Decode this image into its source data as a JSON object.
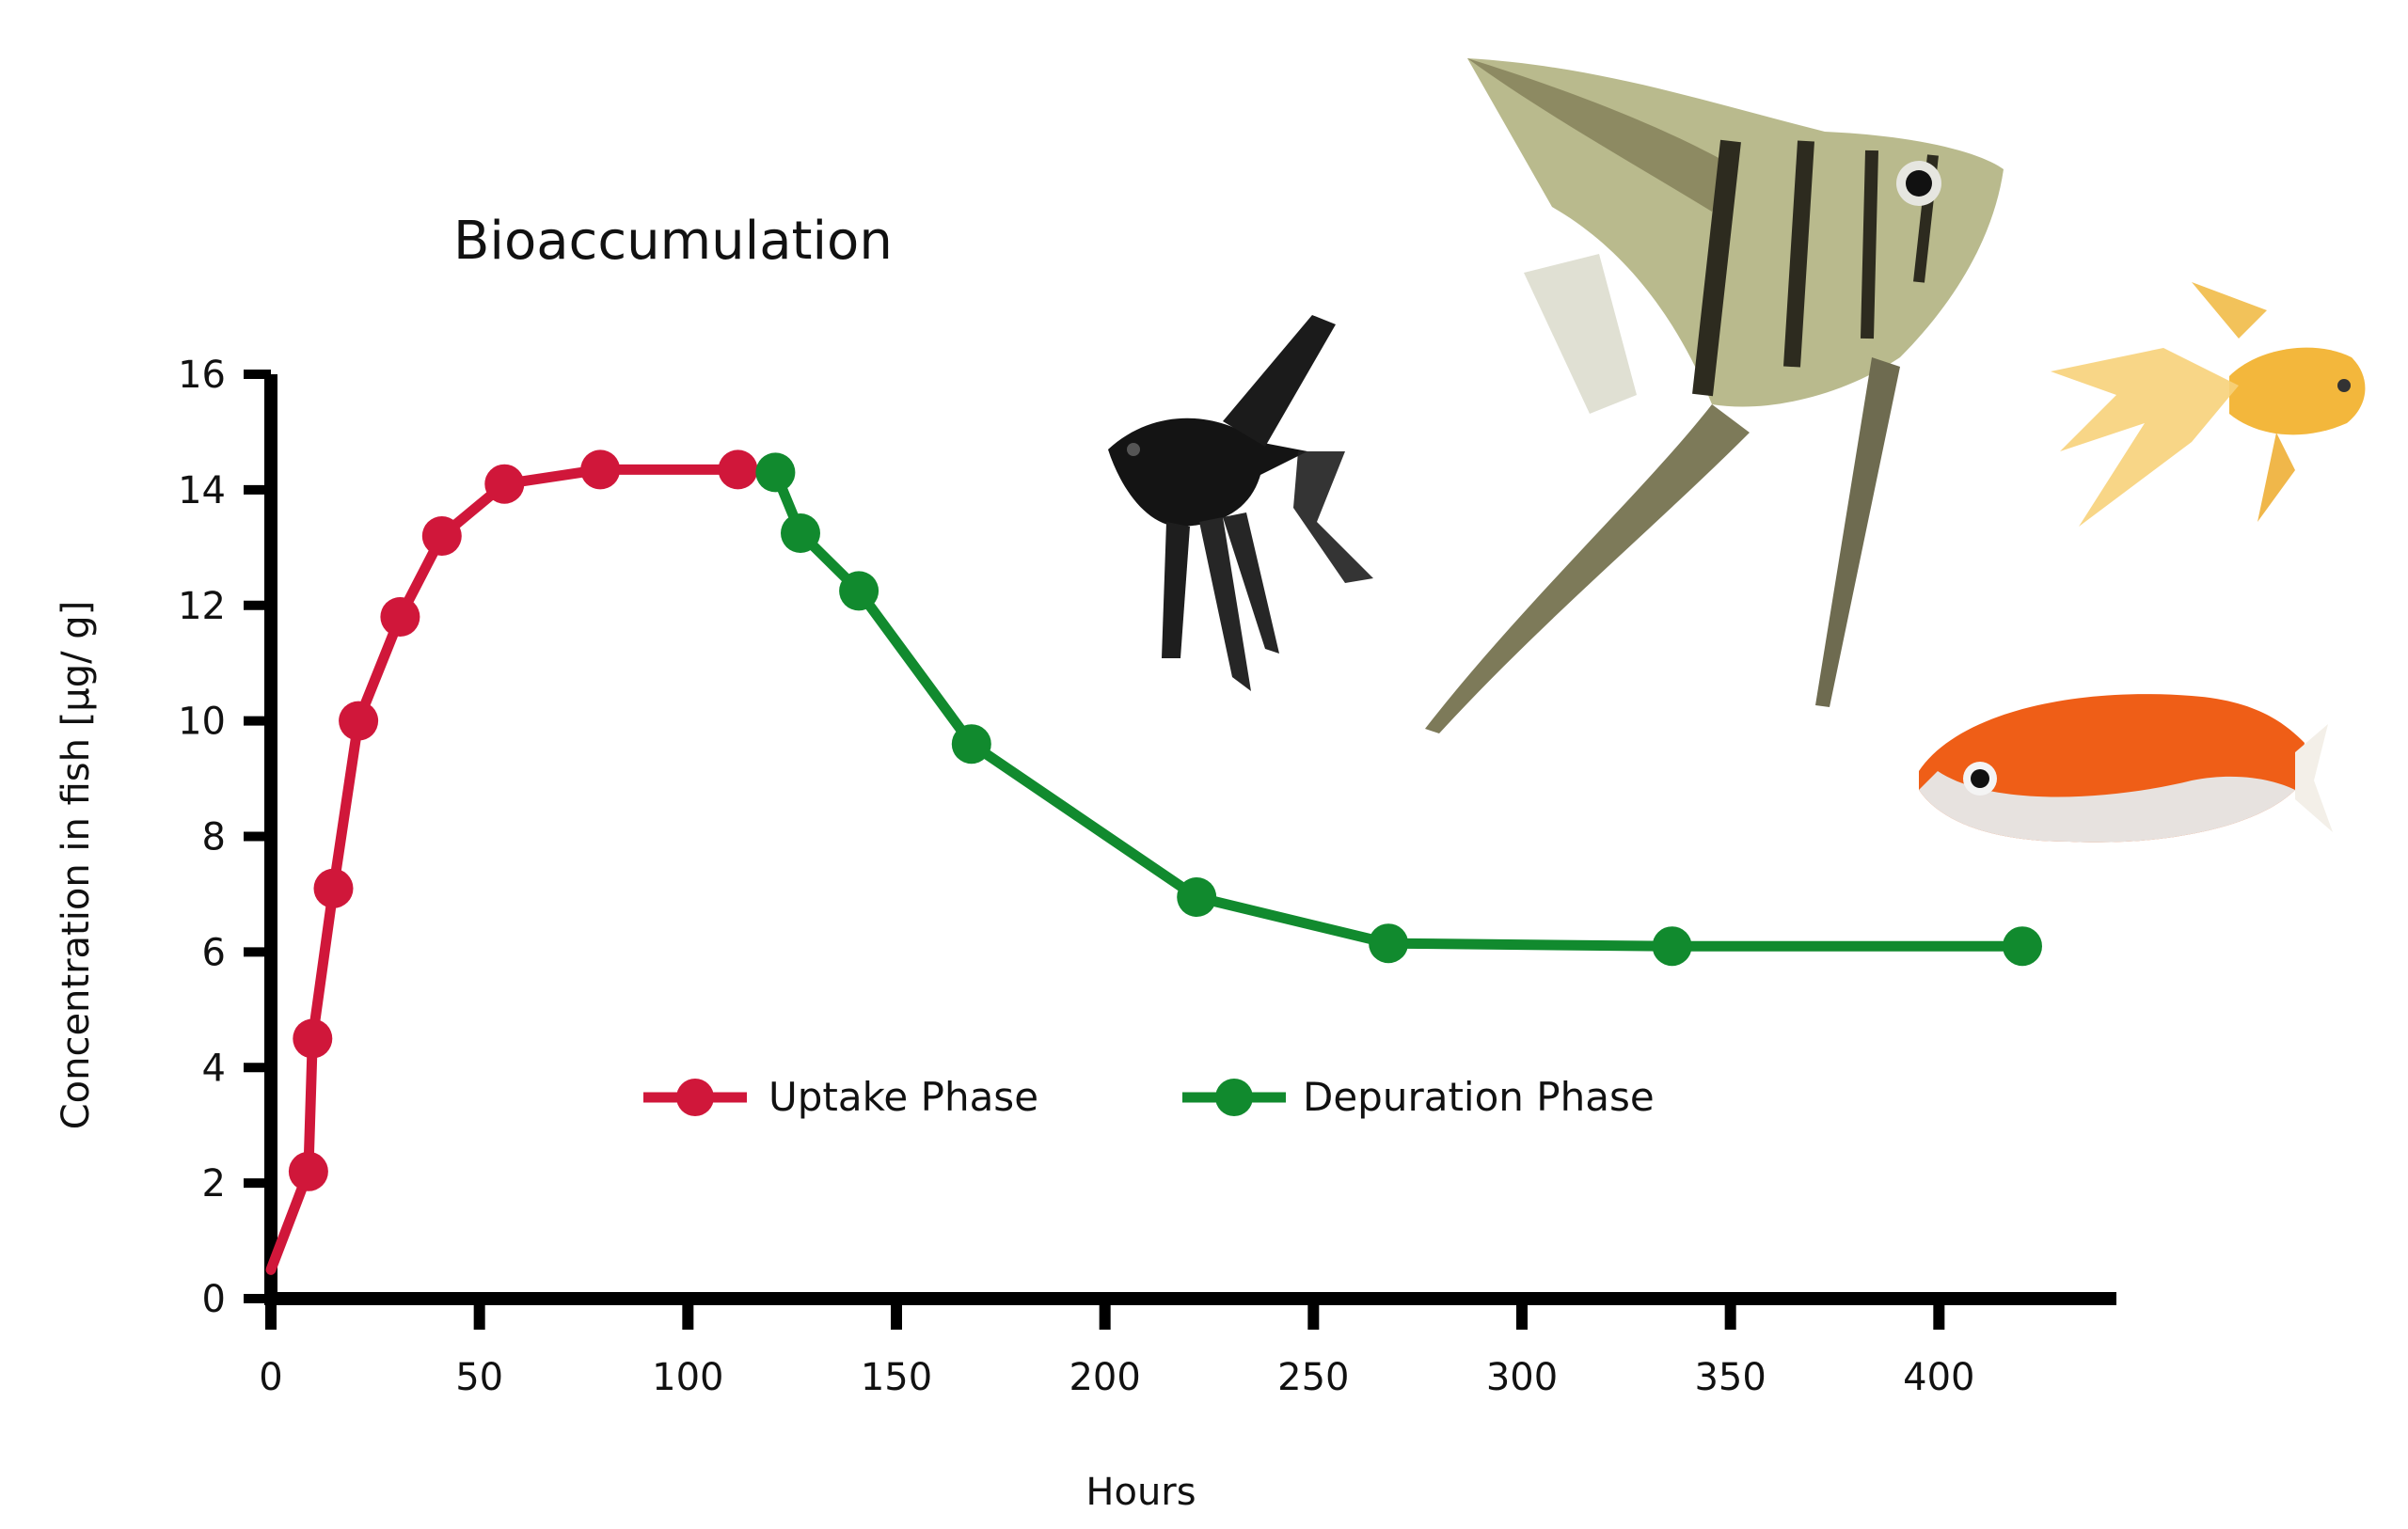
{
  "chart_data": {
    "type": "line",
    "title": "Bioaccumulation",
    "xlabel": "Hours",
    "ylabel": "Concentration in fish [µg/ g]",
    "xlim": [
      0,
      420
    ],
    "ylim": [
      0,
      16
    ],
    "xticks": [
      0,
      50,
      100,
      150,
      200,
      250,
      300,
      350,
      400
    ],
    "yticks": [
      0,
      2,
      4,
      6,
      8,
      10,
      12,
      14,
      16
    ],
    "grid": false,
    "legend_position": "center",
    "series": [
      {
        "name": "Uptake Phase",
        "color": "#d0173a",
        "start_point": {
          "x": 0,
          "y": 0.5
        },
        "points": [
          {
            "x": 9,
            "y": 2.2
          },
          {
            "x": 10,
            "y": 4.5
          },
          {
            "x": 15,
            "y": 7.1
          },
          {
            "x": 21,
            "y": 10.0
          },
          {
            "x": 31,
            "y": 11.8
          },
          {
            "x": 41,
            "y": 13.2
          },
          {
            "x": 56,
            "y": 14.1
          },
          {
            "x": 79,
            "y": 14.35
          },
          {
            "x": 112,
            "y": 14.35
          }
        ]
      },
      {
        "name": "Depuration Phase",
        "color": "#118a2e",
        "points": [
          {
            "x": 121,
            "y": 14.3
          },
          {
            "x": 127,
            "y": 13.25
          },
          {
            "x": 141,
            "y": 12.25
          },
          {
            "x": 168,
            "y": 9.6
          },
          {
            "x": 222,
            "y": 6.95
          },
          {
            "x": 268,
            "y": 6.15
          },
          {
            "x": 336,
            "y": 6.1
          },
          {
            "x": 420,
            "y": 6.1
          }
        ]
      }
    ]
  },
  "illustrations": {
    "fish": [
      "black angelfish",
      "striped angelfish",
      "yellow goldfish",
      "orange and white goldfish"
    ]
  }
}
